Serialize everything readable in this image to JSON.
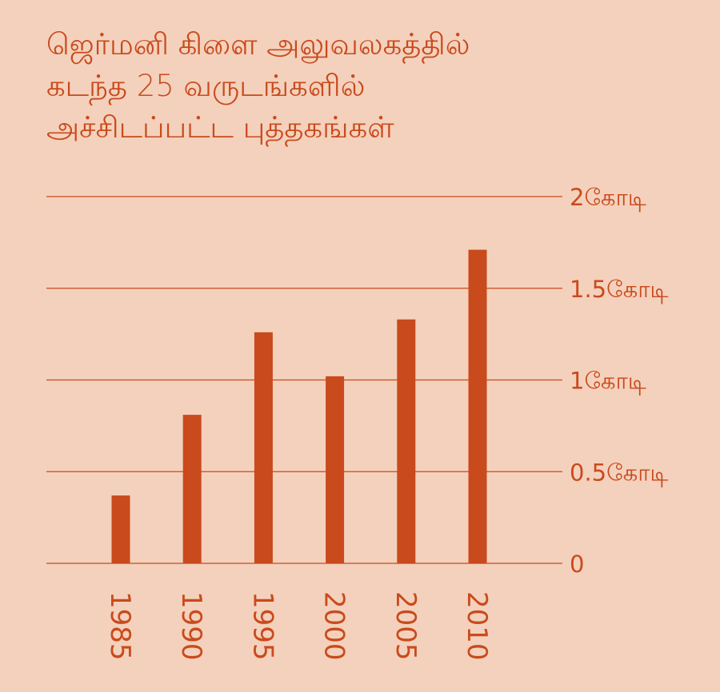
{
  "title_lines": [
    "ஜெர்மனி கிளை அலுவலகத்தில்",
    "கடந்த 25 வருடங்களில்",
    "அச்சிடப்பட்ட புத்தகங்கள்"
  ],
  "chart_data": {
    "type": "bar",
    "title": "ஜெர்மனி கிளை அலுவலகத்தில் கடந்த 25 வருடங்களில் அச்சிடப்பட்ட புத்தகங்கள்",
    "categories": [
      "1985",
      "1990",
      "1995",
      "2000",
      "2005",
      "2010"
    ],
    "values": [
      0.37,
      0.81,
      1.26,
      1.02,
      1.33,
      1.71
    ],
    "unit": "கோடி",
    "ylim": [
      0,
      2
    ],
    "yticks": [
      {
        "value": 0,
        "label": "0"
      },
      {
        "value": 0.5,
        "label": "0.5கோடி"
      },
      {
        "value": 1,
        "label": "1கோடி"
      },
      {
        "value": 1.5,
        "label": "1.5கோடி"
      },
      {
        "value": 2,
        "label": "2கோடி"
      }
    ],
    "grid": true,
    "xlabel": "",
    "ylabel": "",
    "bar_color": "#c94a1d",
    "background_color": "#f4d1bc"
  }
}
